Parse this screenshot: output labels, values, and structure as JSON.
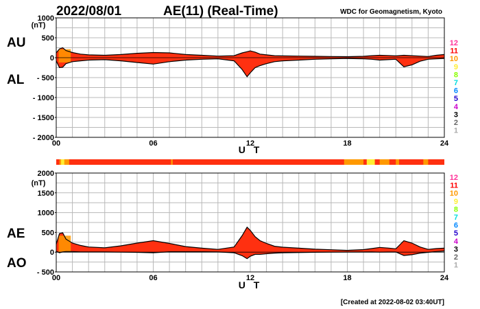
{
  "header": {
    "date": "2022/08/01",
    "title": "AE(11) (Real-Time)",
    "organization": "WDC for Geomagnetism, Kyoto"
  },
  "footer": {
    "created": "[Created at 2022-08-02 03:40UT]"
  },
  "colors": {
    "fill_main": "#ff3010",
    "fill_warm": "#ff9900",
    "fill_yellow": "#ffee33",
    "line": "#000000",
    "grid": "#b8b8b8"
  },
  "station_scale": {
    "items": [
      {
        "label": "12",
        "color": "#ff3399"
      },
      {
        "label": "11",
        "color": "#ff0000"
      },
      {
        "label": "10",
        "color": "#ff9900"
      },
      {
        "label": "9",
        "color": "#ffee33"
      },
      {
        "label": "8",
        "color": "#88ff00"
      },
      {
        "label": "7",
        "color": "#00dddd"
      },
      {
        "label": "6",
        "color": "#0088ff"
      },
      {
        "label": "5",
        "color": "#2200cc"
      },
      {
        "label": "4",
        "color": "#cc00cc"
      },
      {
        "label": "3",
        "color": "#000000"
      },
      {
        "label": "2",
        "color": "#666666"
      },
      {
        "label": "1",
        "color": "#aaaaaa"
      }
    ]
  },
  "chart_data": [
    {
      "type": "area",
      "name": "AU/AL",
      "series_labels": [
        "AU",
        "AL"
      ],
      "unit": "(nT)",
      "xlabel": "U T",
      "x_ticks": [
        "00",
        "06",
        "12",
        "18",
        "24"
      ],
      "y_ticks": [
        "1000",
        "500",
        "0",
        "- 500",
        "- 1000",
        "- 1500",
        "- 2000"
      ],
      "y_tick_values": [
        1000,
        500,
        0,
        -500,
        -1000,
        -1500,
        -2000
      ],
      "xlim": [
        0,
        24
      ],
      "ylim": [
        -2000,
        1000
      ],
      "series": [
        {
          "name": "AU",
          "x": [
            0,
            0.2,
            0.4,
            0.6,
            1,
            1.5,
            2,
            3,
            4,
            5,
            6,
            7,
            8,
            9,
            10,
            11,
            11.5,
            11.8,
            12,
            12.3,
            12.6,
            13,
            13.5,
            14,
            15,
            16,
            17,
            18,
            19,
            19.5,
            20,
            20.5,
            21,
            21.5,
            22,
            22.5,
            23,
            23.5,
            24
          ],
          "values": [
            120,
            220,
            250,
            180,
            130,
            90,
            70,
            60,
            80,
            110,
            130,
            120,
            80,
            60,
            40,
            50,
            120,
            150,
            170,
            140,
            90,
            70,
            50,
            45,
            40,
            35,
            30,
            25,
            35,
            50,
            60,
            55,
            45,
            60,
            50,
            40,
            30,
            60,
            80
          ]
        },
        {
          "name": "AL",
          "x": [
            0,
            0.2,
            0.4,
            0.6,
            1,
            1.5,
            2,
            3,
            4,
            5,
            6,
            7,
            8,
            9,
            10,
            11,
            11.5,
            11.8,
            12,
            12.3,
            12.6,
            13,
            13.5,
            14,
            15,
            16,
            17,
            18,
            19,
            19.5,
            20,
            20.5,
            21,
            21.5,
            22,
            22.5,
            23,
            23.5,
            24
          ],
          "values": [
            -80,
            -250,
            -240,
            -150,
            -100,
            -80,
            -60,
            -50,
            -80,
            -120,
            -160,
            -100,
            -60,
            -40,
            -30,
            -80,
            -300,
            -480,
            -380,
            -250,
            -200,
            -150,
            -100,
            -80,
            -60,
            -40,
            -30,
            -20,
            -30,
            -40,
            -60,
            -50,
            -40,
            -230,
            -180,
            -90,
            -40,
            -30,
            -20
          ]
        }
      ]
    },
    {
      "type": "area",
      "name": "AE/AO",
      "series_labels": [
        "AE",
        "AO"
      ],
      "unit": "(nT)",
      "xlabel": "U T",
      "x_ticks": [
        "00",
        "06",
        "12",
        "18",
        "24"
      ],
      "y_ticks": [
        "2000",
        "1500",
        "1000",
        "500",
        "0",
        "- 500"
      ],
      "y_tick_values": [
        2000,
        1500,
        1000,
        500,
        0,
        -500
      ],
      "xlim": [
        0,
        24
      ],
      "ylim": [
        -500,
        2000
      ],
      "series": [
        {
          "name": "AE",
          "x": [
            0,
            0.2,
            0.4,
            0.6,
            1,
            1.5,
            2,
            3,
            4,
            5,
            6,
            7,
            8,
            9,
            10,
            11,
            11.5,
            11.8,
            12,
            12.3,
            12.6,
            13,
            13.5,
            14,
            15,
            16,
            17,
            18,
            19,
            19.5,
            20,
            20.5,
            21,
            21.5,
            22,
            22.5,
            23,
            23.5,
            24
          ],
          "values": [
            200,
            470,
            490,
            330,
            230,
            170,
            130,
            110,
            160,
            230,
            290,
            220,
            140,
            100,
            70,
            130,
            420,
            630,
            550,
            390,
            290,
            220,
            150,
            125,
            100,
            75,
            60,
            45,
            65,
            90,
            120,
            105,
            85,
            290,
            230,
            130,
            70,
            90,
            100
          ]
        },
        {
          "name": "AO",
          "x": [
            0,
            0.2,
            0.4,
            0.6,
            1,
            1.5,
            2,
            3,
            4,
            5,
            6,
            7,
            8,
            9,
            10,
            11,
            11.5,
            11.8,
            12,
            12.3,
            12.6,
            13,
            13.5,
            14,
            15,
            16,
            17,
            18,
            19,
            19.5,
            20,
            20.5,
            21,
            21.5,
            22,
            22.5,
            23,
            23.5,
            24
          ],
          "values": [
            20,
            -15,
            5,
            15,
            15,
            5,
            5,
            5,
            0,
            -5,
            -15,
            10,
            10,
            10,
            5,
            -15,
            -90,
            -165,
            -105,
            -55,
            -55,
            -40,
            -25,
            -18,
            -10,
            -3,
            0,
            3,
            3,
            5,
            0,
            3,
            3,
            -85,
            -65,
            -25,
            -5,
            15,
            30
          ]
        }
      ]
    }
  ]
}
